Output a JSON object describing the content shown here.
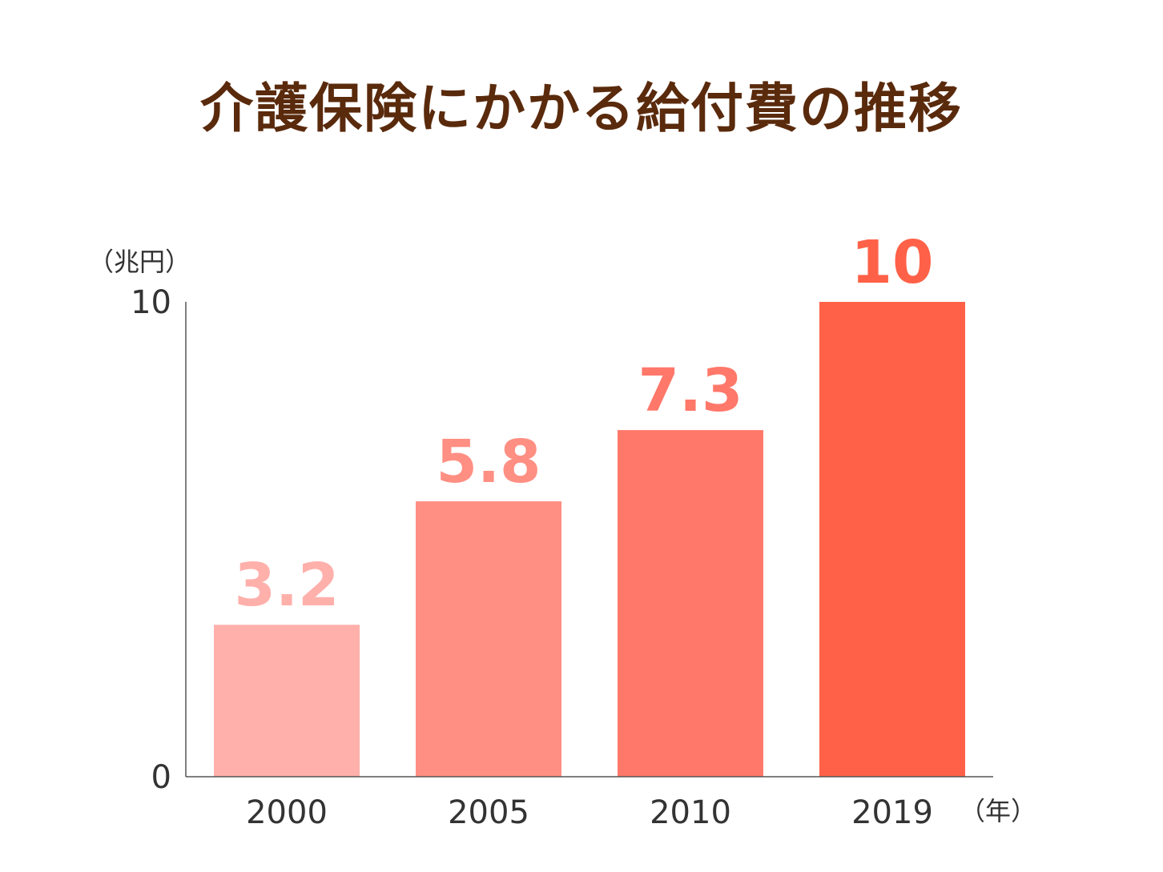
{
  "chart_data": {
    "type": "bar",
    "title": "介護保険にかかる給付費の推移",
    "y_unit": "（兆円）",
    "x_unit": "（年）",
    "categories": [
      "2000",
      "2005",
      "2010",
      "2019"
    ],
    "values": [
      3.2,
      5.8,
      7.3,
      10
    ],
    "value_labels": [
      "3.2",
      "5.8",
      "7.3",
      "10"
    ],
    "ylim": [
      0,
      10
    ],
    "yticks": [
      "0",
      "10"
    ],
    "bar_colors": [
      "#ffb0ab",
      "#ff8f83",
      "#ff786a",
      "#ff6148"
    ],
    "label_colors": [
      "#ffb0ab",
      "#ff8f83",
      "#ff786a",
      "#ff6148"
    ],
    "axis_color": "#555555",
    "grid": false,
    "legend": "none"
  }
}
